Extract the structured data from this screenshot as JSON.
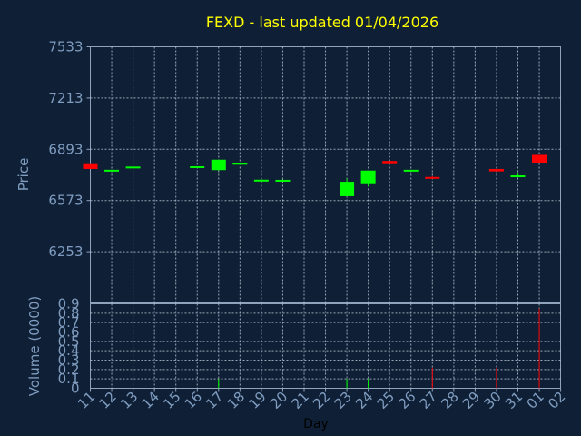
{
  "chart_data": {
    "type": "candlestick",
    "title": "FEXD - last updated 01/04/2026",
    "price_axis": {
      "label": "Price",
      "ticks": [
        "7533",
        "7213",
        "6893",
        "6573",
        "6253"
      ],
      "range": [
        5933,
        7533
      ]
    },
    "volume_axis": {
      "label": "Volume (0000)",
      "ticks": [
        "0.9",
        "0.8",
        "0.7",
        "0.6",
        "0.5",
        "0.4",
        "0.3",
        "0.2",
        "0.1",
        "0"
      ],
      "range": [
        0,
        0.9
      ]
    },
    "xlabel": "Day",
    "x_ticks": [
      "11",
      "12",
      "13",
      "14",
      "15",
      "16",
      "17",
      "18",
      "19",
      "20",
      "21",
      "22",
      "23",
      "24",
      "25",
      "26",
      "27",
      "28",
      "29",
      "30",
      "31",
      "01",
      "02"
    ],
    "grid": true,
    "colors": {
      "background": "#0f2036",
      "up": "#00ff00",
      "down": "#ff0000",
      "title": "#ffff00",
      "axis_text": "#7f9cbf",
      "grid": "#c8d2de"
    },
    "candles": [
      {
        "day": "11",
        "open": 6800,
        "close": 6770,
        "high": 6800,
        "low": 6770,
        "volume": 0.0
      },
      {
        "day": "12",
        "open": 6760,
        "close": 6765,
        "high": 6765,
        "low": 6755,
        "volume": 0.0
      },
      {
        "day": "13",
        "open": 6780,
        "close": 6785,
        "high": 6785,
        "low": 6780,
        "volume": 0.0
      },
      {
        "day": "16",
        "open": 6782,
        "close": 6787,
        "high": 6787,
        "low": 6782,
        "volume": 0.0
      },
      {
        "day": "17",
        "open": 6763,
        "close": 6828,
        "high": 6828,
        "low": 6760,
        "volume": 0.1
      },
      {
        "day": "18",
        "open": 6803,
        "close": 6808,
        "high": 6810,
        "low": 6800,
        "volume": 0.0
      },
      {
        "day": "19",
        "open": 6698,
        "close": 6703,
        "high": 6703,
        "low": 6698,
        "volume": 0.0
      },
      {
        "day": "20",
        "open": 6697,
        "close": 6702,
        "high": 6705,
        "low": 6697,
        "volume": 0.0
      },
      {
        "day": "23",
        "open": 6600,
        "close": 6690,
        "high": 6710,
        "low": 6600,
        "volume": 0.1
      },
      {
        "day": "24",
        "open": 6675,
        "close": 6760,
        "high": 6760,
        "low": 6660,
        "volume": 0.1
      },
      {
        "day": "25",
        "open": 6820,
        "close": 6800,
        "high": 6820,
        "low": 6800,
        "volume": 0.0
      },
      {
        "day": "26",
        "open": 6755,
        "close": 6765,
        "high": 6765,
        "low": 6755,
        "volume": 0.0
      },
      {
        "day": "27",
        "open": 6720,
        "close": 6710,
        "high": 6725,
        "low": 6710,
        "volume": 0.22
      },
      {
        "day": "30",
        "open": 6770,
        "close": 6755,
        "high": 6770,
        "low": 6755,
        "volume": 0.22
      },
      {
        "day": "31",
        "open": 6725,
        "close": 6730,
        "high": 6740,
        "low": 6725,
        "volume": 0.0
      },
      {
        "day": "01",
        "open": 6858,
        "close": 6808,
        "high": 6858,
        "low": 6808,
        "volume": 0.85
      }
    ]
  }
}
